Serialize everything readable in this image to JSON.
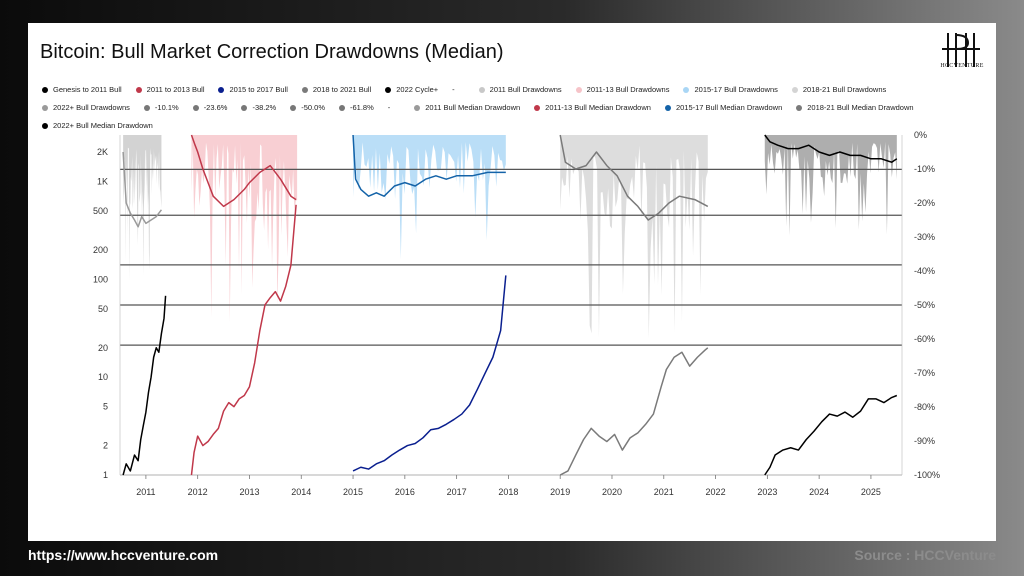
{
  "title": "Bitcoin: Bull Market Correction Drawdowns (Median)",
  "logo_text": "HCCVENTURE",
  "footer": {
    "url": "https://www.hccventure.com",
    "source": "Source : HCCVenture"
  },
  "legend": [
    {
      "label": "Genesis to 2011 Bull",
      "color": "#000000",
      "icon": "dot"
    },
    {
      "label": "2011 to 2013 Bull",
      "color": "#c0384a",
      "icon": "dot"
    },
    {
      "label": "2015 to 2017 Bull",
      "color": "#0a1f8f",
      "icon": "dot"
    },
    {
      "label": "2018 to 2021 Bull",
      "color": "#7a7a7a",
      "icon": "dot"
    },
    {
      "label": "2022 Cycle+",
      "color": "#000000",
      "icon": "dot"
    },
    {
      "label": "-",
      "color": "",
      "icon": "dash"
    },
    {
      "label": "2011 Bull Drawdowns",
      "color": "#c8c8c8",
      "icon": "dot"
    },
    {
      "label": "2011-13 Bull Drawdowns",
      "color": "#f6c3c8",
      "icon": "dot"
    },
    {
      "label": "2015-17 Bull Drawdowns",
      "color": "#a9d6f5",
      "icon": "dot"
    },
    {
      "label": "2018-21 Bull Drawdowns",
      "color": "#d4d4d4",
      "icon": "dot"
    },
    {
      "label": "2022+ Bull Drawdowns",
      "color": "#9a9a9a",
      "icon": "dot"
    },
    {
      "label": "-10.1%",
      "color": "#777777",
      "icon": "dot"
    },
    {
      "label": "-23.6%",
      "color": "#777777",
      "icon": "dot"
    },
    {
      "label": "-38.2%",
      "color": "#777777",
      "icon": "dot"
    },
    {
      "label": "-50.0%",
      "color": "#777777",
      "icon": "dot"
    },
    {
      "label": "-61.8%",
      "color": "#777777",
      "icon": "dot"
    },
    {
      "label": "-",
      "color": "",
      "icon": "dash"
    },
    {
      "label": "2011 Bull Median Drawdown",
      "color": "#9a9a9a",
      "icon": "dot"
    },
    {
      "label": "2011-13 Bull Median Drawdown",
      "color": "#c0384a",
      "icon": "dot"
    },
    {
      "label": "2015-17 Bull Median Drawdown",
      "color": "#1463a8",
      "icon": "dot"
    },
    {
      "label": "2018-21 Bull Median Drawdown",
      "color": "#7a7a7a",
      "icon": "dot"
    },
    {
      "label": "2022+ Bull Median Drawdown",
      "color": "#000000",
      "icon": "dot"
    }
  ],
  "chart_data": {
    "type": "line",
    "title": "Bitcoin: Bull Market Correction Drawdowns (Median)",
    "x_ticks": [
      "2011",
      "2012",
      "2013",
      "2014",
      "2015",
      "2016",
      "2017",
      "2018",
      "2019",
      "2020",
      "2021",
      "2022",
      "2023",
      "2024",
      "2025"
    ],
    "xlim": [
      2010.5,
      2025.6
    ],
    "y_left": {
      "scale": "log",
      "ticks": [
        1,
        2,
        5,
        10,
        20,
        50,
        100,
        200,
        500,
        1000,
        2000
      ],
      "tick_labels": [
        "1",
        "2",
        "5",
        "10",
        "20",
        "50",
        "100",
        "200",
        "500",
        "1K",
        "2K"
      ],
      "ylim": [
        1,
        3000
      ]
    },
    "y_right": {
      "scale": "linear",
      "ticks": [
        0,
        -10,
        -20,
        -30,
        -40,
        -50,
        -60,
        -70,
        -80,
        -90,
        -100
      ],
      "tick_labels": [
        "0%",
        "-10%",
        "-20%",
        "-30%",
        "-40%",
        "-50%",
        "-60%",
        "-70%",
        "-80%",
        "-90%",
        "-100%"
      ],
      "ylim": [
        -100,
        0
      ]
    },
    "levels": [
      -10.1,
      -23.6,
      -38.2,
      -50.0,
      -61.8
    ],
    "series": [
      {
        "name": "Genesis to 2011 Bull",
        "axis": "left",
        "color": "#000000",
        "x": [
          2010.56,
          2010.62,
          2010.7,
          2010.78,
          2010.85,
          2010.9,
          2010.95,
          2011.0,
          2011.05,
          2011.1,
          2011.15,
          2011.2,
          2011.25,
          2011.3,
          2011.35,
          2011.38
        ],
        "y": [
          1.0,
          1.3,
          1.1,
          1.6,
          1.4,
          2.3,
          3.2,
          4.4,
          7.0,
          10,
          16,
          20,
          18,
          28,
          40,
          68
        ]
      },
      {
        "name": "2011 to 2013 Bull",
        "axis": "left",
        "color": "#c0384a",
        "x": [
          2011.88,
          2011.93,
          2012.0,
          2012.1,
          2012.2,
          2012.3,
          2012.4,
          2012.5,
          2012.6,
          2012.7,
          2012.8,
          2012.9,
          2013.0,
          2013.1,
          2013.2,
          2013.3,
          2013.4,
          2013.5,
          2013.6,
          2013.7,
          2013.8,
          2013.9
        ],
        "y": [
          1.0,
          1.7,
          2.5,
          2.0,
          2.2,
          2.6,
          3.0,
          4.5,
          5.5,
          5.0,
          6.0,
          6.5,
          8.0,
          14,
          30,
          55,
          65,
          75,
          60,
          85,
          140,
          580
        ]
      },
      {
        "name": "2015 to 2017 Bull",
        "axis": "left",
        "color": "#0a1f8f",
        "x": [
          2015.0,
          2015.15,
          2015.3,
          2015.45,
          2015.6,
          2015.75,
          2015.9,
          2016.05,
          2016.2,
          2016.35,
          2016.5,
          2016.65,
          2016.8,
          2016.95,
          2017.1,
          2017.25,
          2017.4,
          2017.55,
          2017.7,
          2017.85,
          2017.95
        ],
        "y": [
          1.1,
          1.2,
          1.15,
          1.3,
          1.4,
          1.6,
          1.8,
          2.0,
          2.1,
          2.4,
          2.9,
          3.0,
          3.3,
          3.7,
          4.2,
          5.2,
          7.5,
          11,
          16,
          30,
          110
        ]
      },
      {
        "name": "2018 to 2021 Bull",
        "axis": "left",
        "color": "#7a7a7a",
        "x": [
          2019.0,
          2019.15,
          2019.3,
          2019.45,
          2019.6,
          2019.75,
          2019.9,
          2020.05,
          2020.2,
          2020.35,
          2020.5,
          2020.65,
          2020.8,
          2020.95,
          2021.05,
          2021.2,
          2021.35,
          2021.5,
          2021.65,
          2021.8,
          2021.85
        ],
        "y": [
          1.0,
          1.1,
          1.6,
          2.3,
          3.0,
          2.5,
          2.2,
          2.6,
          1.8,
          2.4,
          2.7,
          3.3,
          4.2,
          8.0,
          12,
          16,
          18,
          13,
          16,
          19,
          20
        ]
      },
      {
        "name": "2022 Cycle+",
        "axis": "left",
        "color": "#000000",
        "x": [
          2022.95,
          2023.05,
          2023.15,
          2023.3,
          2023.45,
          2023.6,
          2023.75,
          2023.9,
          2024.05,
          2024.2,
          2024.35,
          2024.5,
          2024.65,
          2024.8,
          2024.95,
          2025.1,
          2025.25,
          2025.4,
          2025.5
        ],
        "y": [
          1.0,
          1.2,
          1.6,
          1.8,
          1.9,
          1.8,
          2.3,
          2.8,
          3.5,
          4.2,
          4.0,
          4.4,
          3.9,
          4.5,
          6.0,
          6.0,
          5.5,
          6.2,
          6.5
        ]
      },
      {
        "name": "2011 Bull Median Drawdown",
        "axis": "right",
        "color": "#9a9a9a",
        "x": [
          2010.56,
          2010.62,
          2010.7,
          2010.78,
          2010.85,
          2010.92,
          2011.0,
          2011.1,
          2011.2,
          2011.3
        ],
        "y": [
          -5,
          -20,
          -23,
          -25,
          -27,
          -24,
          -26,
          -25,
          -24,
          -22
        ]
      },
      {
        "name": "2011-13 Bull Median Drawdown",
        "axis": "right",
        "color": "#c0384a",
        "x": [
          2011.88,
          2011.95,
          2012.0,
          2012.1,
          2012.2,
          2012.3,
          2012.5,
          2012.7,
          2012.9,
          2013.0,
          2013.2,
          2013.4,
          2013.6,
          2013.8,
          2013.9
        ],
        "y": [
          0,
          -3,
          -5,
          -10,
          -14,
          -18,
          -21,
          -19,
          -16,
          -14,
          -11,
          -9,
          -13,
          -18,
          -19
        ]
      },
      {
        "name": "2015-17 Bull Median Drawdown",
        "axis": "right",
        "color": "#1463a8",
        "x": [
          2015.0,
          2015.05,
          2015.15,
          2015.3,
          2015.45,
          2015.6,
          2015.8,
          2016.0,
          2016.2,
          2016.4,
          2016.6,
          2016.8,
          2017.0,
          2017.3,
          2017.6,
          2017.95
        ],
        "y": [
          0,
          -13,
          -16,
          -18,
          -17,
          -18,
          -15,
          -14,
          -15,
          -13,
          -12,
          -13,
          -12,
          -12,
          -11,
          -11
        ]
      },
      {
        "name": "2018-21 Bull Median Drawdown",
        "axis": "right",
        "color": "#7a7a7a",
        "x": [
          2019.0,
          2019.1,
          2019.3,
          2019.5,
          2019.7,
          2019.9,
          2020.1,
          2020.3,
          2020.5,
          2020.7,
          2020.9,
          2021.1,
          2021.3,
          2021.6,
          2021.85
        ],
        "y": [
          0,
          -8,
          -10,
          -9,
          -5,
          -9,
          -12,
          -18,
          -21,
          -25,
          -23,
          -20,
          -18,
          -19,
          -21
        ]
      },
      {
        "name": "2022+ Bull Median Drawdown",
        "axis": "right",
        "color": "#000000",
        "x": [
          2022.95,
          2023.05,
          2023.2,
          2023.4,
          2023.6,
          2023.8,
          2024.0,
          2024.2,
          2024.4,
          2024.6,
          2024.8,
          2025.0,
          2025.2,
          2025.4,
          2025.5
        ],
        "y": [
          0,
          -2,
          -3,
          -4,
          -4,
          -3,
          -5,
          -6,
          -5,
          -6,
          -6,
          -7,
          -7,
          -8,
          -7
        ]
      }
    ]
  }
}
